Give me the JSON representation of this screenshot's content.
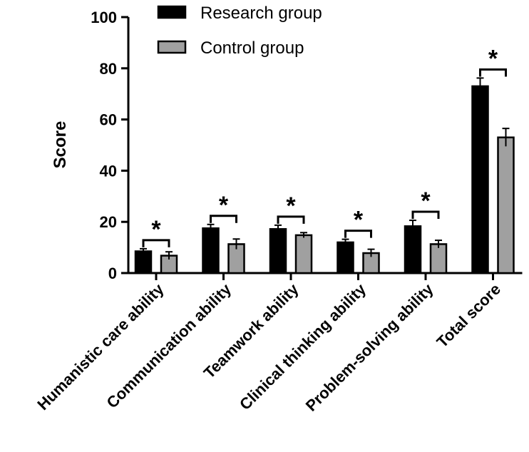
{
  "chart_data": {
    "type": "bar",
    "title": "",
    "xlabel": "",
    "ylabel": "Score",
    "ylim": [
      0,
      100
    ],
    "yticks": [
      0,
      20,
      40,
      60,
      80,
      100
    ],
    "grid": false,
    "legend_position": "top",
    "categories": [
      "Humanistic care ability",
      "Communication ability",
      "Teamwork ability",
      "Clinical thinking ability",
      "Problem-solving ability",
      "Total score"
    ],
    "series": [
      {
        "name": "Research group",
        "color": "#000000",
        "values": [
          8.5,
          17.5,
          17.2,
          12.0,
          18.3,
          73.0
        ],
        "errors": [
          1.0,
          1.5,
          1.5,
          1.2,
          2.3,
          3.2
        ]
      },
      {
        "name": "Control group",
        "color": "#a0a0a0",
        "values": [
          6.8,
          11.3,
          14.8,
          7.8,
          11.3,
          53.0
        ],
        "errors": [
          1.5,
          2.0,
          1.0,
          1.5,
          1.5,
          3.5
        ]
      }
    ],
    "significance": {
      "symbol": "*",
      "categories": [
        "Humanistic care ability",
        "Communication ability",
        "Teamwork ability",
        "Clinical thinking ability",
        "Problem-solving ability",
        "Total score"
      ]
    }
  }
}
